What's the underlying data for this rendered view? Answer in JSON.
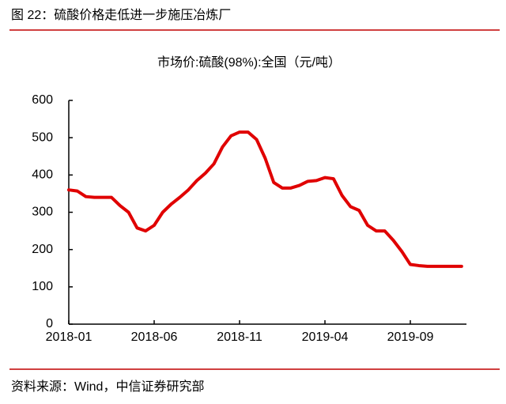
{
  "figure_title": "图 22：硫酸价格走低进一步施压冶炼厂",
  "source": "资料来源：Wind，中信证券研究部",
  "chart_data": {
    "type": "line",
    "title": "市场价:硫酸(98%):全国（元/吨）",
    "categories": [
      "2018-01",
      null,
      null,
      null,
      null,
      null,
      null,
      null,
      null,
      null,
      "2018-06",
      null,
      null,
      null,
      null,
      null,
      null,
      null,
      null,
      null,
      "2018-11",
      null,
      null,
      null,
      null,
      null,
      null,
      null,
      null,
      null,
      "2019-04",
      null,
      null,
      null,
      null,
      null,
      null,
      null,
      null,
      null,
      "2019-09",
      null,
      null,
      null,
      null,
      null,
      null
    ],
    "series": [
      {
        "color": "#e00000",
        "values": [
          360,
          357,
          342,
          340,
          340,
          340,
          318,
          300,
          258,
          250,
          265,
          300,
          322,
          340,
          360,
          385,
          405,
          430,
          475,
          505,
          515,
          515,
          495,
          445,
          380,
          365,
          365,
          372,
          383,
          385,
          393,
          390,
          345,
          315,
          305,
          265,
          250,
          250,
          225,
          195,
          160,
          157,
          155,
          155,
          155,
          155,
          155
        ]
      }
    ],
    "ylim": [
      0,
      600
    ],
    "yticks": [
      0,
      100,
      200,
      300,
      400,
      500,
      600
    ],
    "grid": false
  }
}
